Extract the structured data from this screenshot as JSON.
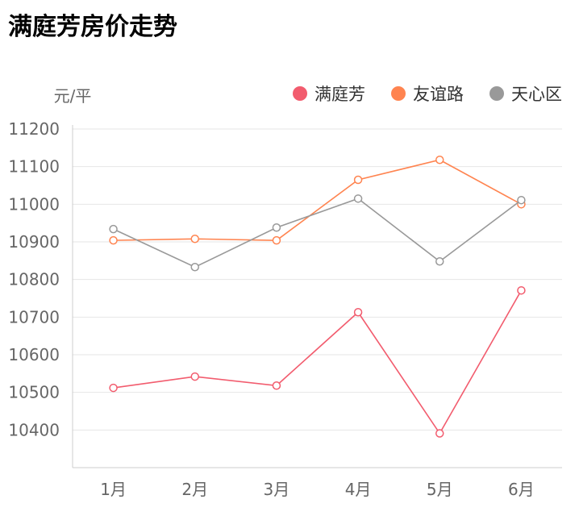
{
  "title": "满庭芳房价走势",
  "chart_data": {
    "type": "line",
    "title": "满庭芳房价走势",
    "ylabel": "元/平",
    "xlabel": "",
    "categories": [
      "1月",
      "2月",
      "3月",
      "4月",
      "5月",
      "6月"
    ],
    "ylim": [
      10300,
      11200
    ],
    "yticks": [
      10400,
      10500,
      10600,
      10700,
      10800,
      10900,
      11000,
      11100,
      11200
    ],
    "grid": true,
    "legend_position": "top-right",
    "series": [
      {
        "name": "满庭芳",
        "color": "#f25c6e",
        "values": [
          10512,
          10542,
          10518,
          10713,
          10391,
          10771
        ]
      },
      {
        "name": "友谊路",
        "color": "#ff8450",
        "values": [
          10904,
          10908,
          10904,
          11065,
          11118,
          11000
        ]
      },
      {
        "name": "天心区",
        "color": "#999999",
        "values": [
          10934,
          10833,
          10938,
          11015,
          10848,
          11011
        ]
      }
    ]
  }
}
